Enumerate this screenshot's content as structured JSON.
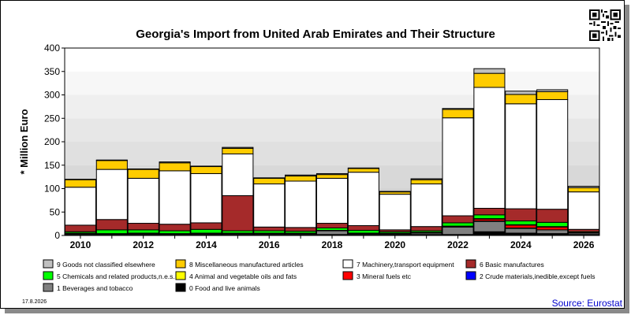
{
  "chart_data": {
    "type": "bar",
    "stacked": true,
    "title": "Georgia's Import from United Arab Emirates and Their Structure",
    "ylabel": "* Million Euro",
    "ylim": [
      0,
      400
    ],
    "yticks": [
      0,
      50,
      100,
      150,
      200,
      250,
      300,
      350,
      400
    ],
    "categories": [
      "2010",
      "2011",
      "2012",
      "2013",
      "2014",
      "2015",
      "2016",
      "2017",
      "2018",
      "2019",
      "2020",
      "2021",
      "2022",
      "2023",
      "2024",
      "2025",
      "2026"
    ],
    "xtick_labels": [
      "2010",
      "",
      "2012",
      "",
      "2014",
      "",
      "2016",
      "",
      "2018",
      "",
      "2020",
      "",
      "2022",
      "",
      "2024",
      "",
      "2026"
    ],
    "series": [
      {
        "name": "0 Food and live animals",
        "color": "#000000",
        "values": [
          2,
          2,
          2,
          2,
          2,
          2,
          2,
          2,
          2,
          2,
          2,
          2,
          2,
          8,
          5,
          4,
          2
        ]
      },
      {
        "name": "1 Beverages and tobacco",
        "color": "#808080",
        "values": [
          2,
          1,
          2,
          1,
          2,
          2,
          2,
          2,
          8,
          2,
          2,
          3,
          16,
          22,
          10,
          8,
          3
        ]
      },
      {
        "name": "2 Crude materials,inedible,except fuels",
        "color": "#0000ff",
        "values": [
          0,
          0,
          0,
          0,
          0,
          0,
          0,
          0,
          0,
          0,
          0,
          0,
          0,
          1,
          1,
          0,
          0
        ]
      },
      {
        "name": "3 Mineral fuels etc",
        "color": "#ff0000",
        "values": [
          0,
          0,
          0,
          0,
          0,
          0,
          0,
          0,
          0,
          0,
          0,
          1,
          1,
          4,
          6,
          6,
          0
        ]
      },
      {
        "name": "4 Animal and vegetable oils and fats",
        "color": "#ffff00",
        "values": [
          1,
          1,
          1,
          1,
          1,
          1,
          1,
          1,
          1,
          1,
          1,
          1,
          1,
          1,
          1,
          1,
          1
        ]
      },
      {
        "name": "5 Chemicals and related products,n.e.s.",
        "color": "#00ff00",
        "values": [
          3,
          8,
          7,
          6,
          8,
          5,
          5,
          4,
          5,
          6,
          3,
          3,
          7,
          8,
          8,
          9,
          2
        ]
      },
      {
        "name": "6 Basic manufactures",
        "color": "#a52a2a",
        "values": [
          14,
          22,
          14,
          14,
          14,
          75,
          8,
          8,
          10,
          10,
          4,
          9,
          15,
          14,
          26,
          28,
          5
        ]
      },
      {
        "name": "7 Machinery,transport equipment",
        "color": "#ffffff",
        "values": [
          81,
          107,
          96,
          114,
          105,
          89,
          92,
          99,
          96,
          114,
          76,
          91,
          209,
          258,
          224,
          234,
          80
        ]
      },
      {
        "name": "8 Miscellaneous manufactured articles",
        "color": "#ffcc00",
        "values": [
          16,
          19,
          19,
          17,
          15,
          12,
          12,
          11,
          8,
          8,
          5,
          9,
          18,
          30,
          20,
          17,
          9
        ]
      },
      {
        "name": "9 Goods not classified elsewhere",
        "color": "#c0c0c0",
        "values": [
          1,
          1,
          1,
          2,
          1,
          2,
          1,
          2,
          2,
          1,
          1,
          2,
          2,
          10,
          7,
          4,
          3
        ]
      }
    ],
    "legend_placement": "bottom",
    "legend_order": [
      9,
      8,
      7,
      6,
      5,
      4,
      3,
      2,
      1,
      0
    ],
    "grid": "background bands"
  },
  "footer": {
    "date": "17.8.2026",
    "source": "Source: Eurostat"
  },
  "colors": {
    "band_light": "#e6e6e6",
    "band_dark": "#c8c8c8",
    "frame_shadow": "#8a8a8a",
    "source_text": "#0000cc"
  },
  "qr_icon": "qr-code-icon"
}
